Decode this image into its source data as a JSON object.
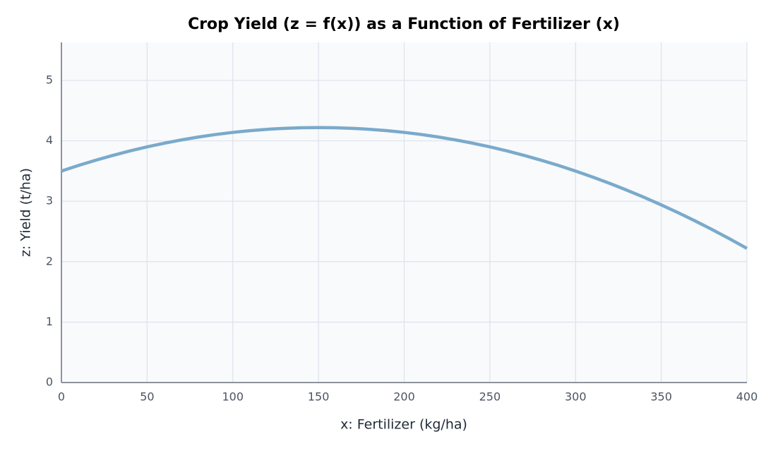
{
  "chart_data": {
    "type": "line",
    "title": "Crop Yield (z = f(x)) as a Function of Fertilizer (x)",
    "x_label": "x: Fertilizer (kg/ha)",
    "y_label": "z: Yield (t/ha)",
    "x": [
      0,
      10,
      20,
      30,
      40,
      50,
      60,
      70,
      80,
      90,
      100,
      110,
      120,
      130,
      140,
      150,
      160,
      170,
      180,
      190,
      200,
      210,
      220,
      230,
      240,
      250,
      260,
      270,
      280,
      290,
      300,
      310,
      320,
      330,
      340,
      350,
      360,
      370,
      380,
      390,
      400
    ],
    "values": [
      3.5,
      3.593,
      3.679,
      3.759,
      3.833,
      3.9,
      3.961,
      4.015,
      4.063,
      4.105,
      4.14,
      4.169,
      4.191,
      4.207,
      4.217,
      4.22,
      4.217,
      4.207,
      4.191,
      4.169,
      4.14,
      4.105,
      4.063,
      4.015,
      3.961,
      3.9,
      3.833,
      3.759,
      3.679,
      3.593,
      3.5,
      3.401,
      3.295,
      3.183,
      3.065,
      2.94,
      2.809,
      2.671,
      2.527,
      2.377,
      2.22
    ],
    "color": "#7aaacb",
    "xlim": [
      0,
      400
    ],
    "xticks": [
      0,
      50,
      100,
      150,
      200,
      250,
      300,
      350,
      400
    ],
    "ylim": [
      0,
      5.63
    ],
    "yticks": [
      0,
      1,
      2,
      3,
      4,
      5
    ],
    "grid": true
  }
}
